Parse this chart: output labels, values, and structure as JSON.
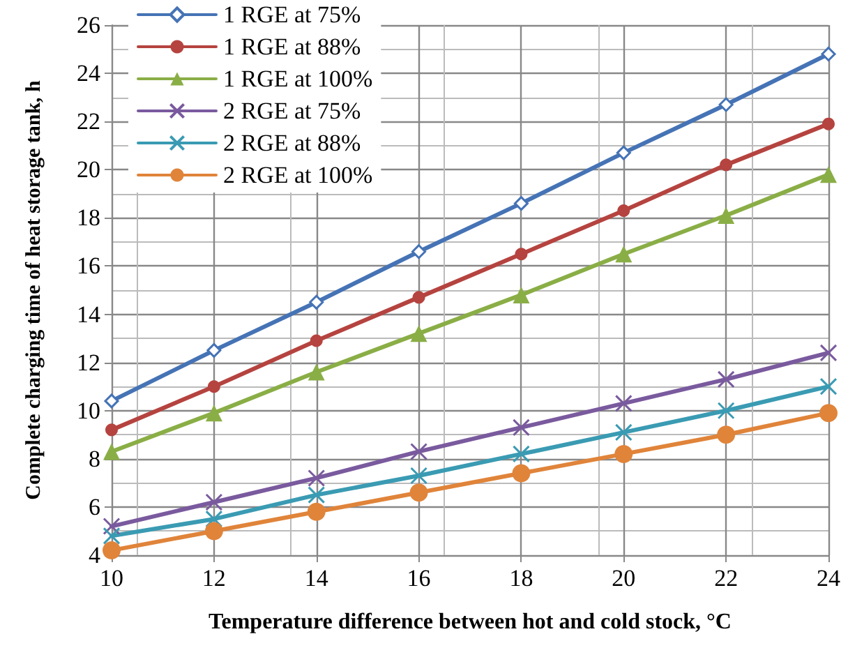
{
  "chart_data": {
    "type": "line",
    "xlabel": "Temperature difference between hot and cold stock, °C",
    "ylabel": "Complete charging time of heat storage tank, h",
    "x": [
      10,
      12,
      14,
      16,
      18,
      20,
      22,
      24
    ],
    "xlim": [
      10,
      24
    ],
    "xticks": [
      10,
      12,
      14,
      16,
      18,
      20,
      22,
      24
    ],
    "ylim": [
      4,
      26
    ],
    "yticks": [
      4,
      6,
      8,
      10,
      12,
      14,
      16,
      18,
      20,
      22,
      24,
      26
    ],
    "grid": true,
    "legend": "top left",
    "line_style": "solid",
    "series": [
      {
        "name": "1 RGE at 75%",
        "color": "#4573b5",
        "marker": "diamond",
        "values": [
          10.4,
          12.5,
          14.5,
          16.6,
          18.6,
          20.7,
          22.7,
          24.8
        ]
      },
      {
        "name": "1 RGE at 88%",
        "color": "#b5433f",
        "marker": "circle",
        "values": [
          9.2,
          11.0,
          12.9,
          14.7,
          16.5,
          18.3,
          20.2,
          21.9
        ]
      },
      {
        "name": "1 RGE at 100%",
        "color": "#8aae46",
        "marker": "triangle",
        "values": [
          8.3,
          9.9,
          11.6,
          13.2,
          14.8,
          16.5,
          18.1,
          19.8
        ]
      },
      {
        "name": "2 RGE at 75%",
        "color": "#7a5a9e",
        "marker": "cross",
        "values": [
          5.2,
          6.2,
          7.2,
          8.3,
          9.3,
          10.3,
          11.3,
          12.4
        ]
      },
      {
        "name": "2 RGE at 88%",
        "color": "#3a9bb3",
        "marker": "cross",
        "values": [
          4.8,
          5.5,
          6.5,
          7.3,
          8.2,
          9.1,
          10.0,
          11.0
        ]
      },
      {
        "name": "2 RGE at 100%",
        "color": "#e0843a",
        "marker": "circle",
        "values": [
          4.2,
          5.0,
          5.8,
          6.6,
          7.4,
          8.2,
          9.0,
          9.9
        ]
      }
    ]
  }
}
